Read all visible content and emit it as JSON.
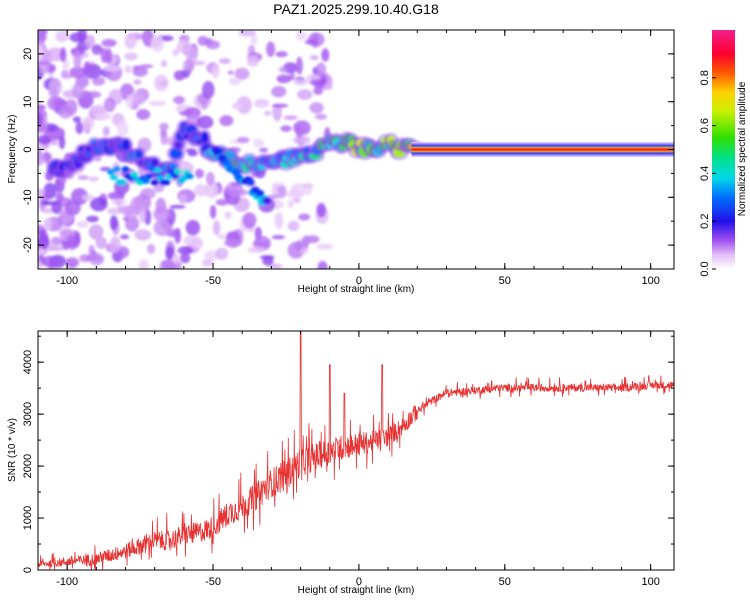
{
  "title": "PAZ1.2025.299.10.40.G18",
  "chart_data": [
    {
      "type": "heatmap",
      "xlabel": "Height of straight line (km)",
      "ylabel": "Frequency (Hz)",
      "xlim": [
        -110,
        108
      ],
      "ylim": [
        -25,
        25
      ],
      "xticks": [
        -100,
        -50,
        0,
        50,
        100
      ],
      "yticks": [
        -20,
        -10,
        0,
        10,
        20
      ],
      "colorbar": {
        "label": "Normalized spectral amplitude",
        "range": [
          0.0,
          1.0
        ],
        "ticks": [
          "0.0",
          "0.2",
          "0.4",
          "0.6",
          "0.8"
        ],
        "tick_values": [
          0.0,
          0.2,
          0.4,
          0.6,
          0.8
        ]
      },
      "ridge": {
        "x": [
          -100,
          -92,
          -85,
          -80,
          -75,
          -70,
          -65,
          -60,
          -55,
          -50,
          -45,
          -40,
          -35,
          -30,
          -25,
          -20,
          -15,
          -10,
          -5,
          0,
          5,
          10,
          15,
          20,
          30,
          50,
          80,
          108
        ],
        "freq": [
          -4,
          0.5,
          1.0,
          0,
          -2,
          -4,
          -5,
          3.5,
          3.0,
          -0.5,
          -2,
          -2.5,
          -3,
          -3.5,
          -2,
          -1.5,
          -0.5,
          1,
          1.5,
          0.5,
          0.5,
          1,
          0.2,
          0,
          0,
          0,
          0,
          0
        ],
        "amplitude": [
          0.2,
          0.3,
          0.25,
          0.3,
          0.35,
          0.3,
          0.3,
          0.25,
          0.3,
          0.4,
          0.45,
          0.5,
          0.4,
          0.35,
          0.4,
          0.45,
          0.5,
          0.5,
          0.6,
          0.65,
          0.6,
          0.6,
          0.7,
          0.8,
          0.9,
          0.92,
          0.93,
          0.93
        ]
      },
      "secondary_branch": {
        "x": [
          -50,
          -45,
          -40,
          -35,
          -31
        ],
        "freq": [
          0,
          -3,
          -6,
          -9,
          -12
        ]
      }
    },
    {
      "type": "line",
      "xlabel": "Height of straight line (km)",
      "ylabel": "SNR (10 * v/v)",
      "xlim": [
        -110,
        108
      ],
      "ylim": [
        0,
        4600
      ],
      "xticks": [
        -100,
        -50,
        0,
        50,
        100
      ],
      "yticks": [
        0,
        1000,
        2000,
        3000,
        4000
      ],
      "color": "#e83232",
      "series": [
        {
          "name": "SNR",
          "x": [
            -110,
            -100,
            -90,
            -80,
            -75,
            -70,
            -65,
            -60,
            -55,
            -50,
            -45,
            -40,
            -35,
            -30,
            -25,
            -20,
            -15,
            -10,
            -5,
            0,
            5,
            10,
            15,
            20,
            25,
            30,
            40,
            50,
            60,
            70,
            80,
            90,
            100,
            108
          ],
          "values": [
            100,
            150,
            200,
            350,
            450,
            550,
            550,
            650,
            700,
            800,
            1050,
            1200,
            1400,
            1650,
            1800,
            2050,
            2150,
            2250,
            2350,
            2400,
            2450,
            2550,
            2750,
            3050,
            3250,
            3400,
            3450,
            3500,
            3500,
            3500,
            3500,
            3500,
            3550,
            3550
          ]
        }
      ],
      "spikes": [
        {
          "x": -20,
          "value": 4600
        },
        {
          "x": -10,
          "value": 3950
        },
        {
          "x": 8,
          "value": 3950
        },
        {
          "x": -5,
          "value": 3400
        }
      ]
    }
  ]
}
